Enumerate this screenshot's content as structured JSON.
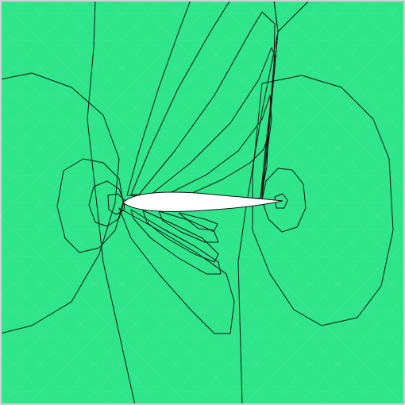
{
  "visualization": {
    "kind": "contour-plot",
    "subject": "airfoil-flow-field",
    "colormap": [
      "#1f2bd6",
      "#2a74e6",
      "#2fd3ef",
      "#39f2c0",
      "#2ee58a",
      "#3ddc3f",
      "#63e03a",
      "#a6e62f",
      "#e7ee2a",
      "#ffd21a",
      "#ffa31a",
      "#ff6a12",
      "#ff2a0f"
    ],
    "background_color": "#2ee58a",
    "mesh_visible": true,
    "contour_lines": true
  }
}
